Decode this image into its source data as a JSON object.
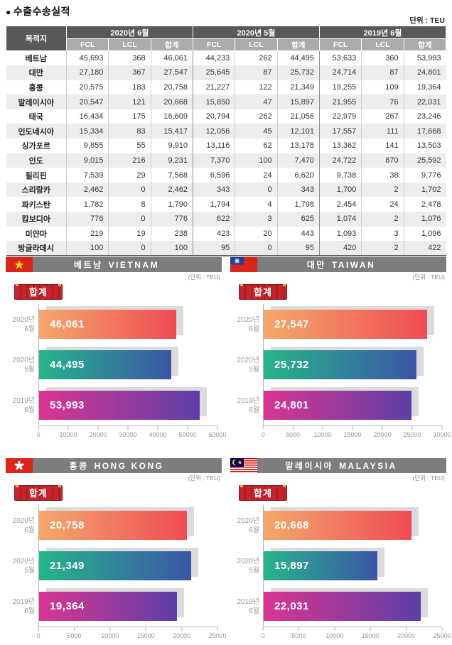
{
  "page": {
    "bullet": "●",
    "title": "수출수송실적",
    "unit": "단위 : TEU"
  },
  "table": {
    "dest_header": "목적지",
    "col_groups": [
      "2020년 6월",
      "2020년 5월",
      "2019년 6월"
    ],
    "sub_headers": [
      "FCL",
      "LCL",
      "합계"
    ],
    "rows": [
      {
        "dest": "베트남",
        "values": [
          "45,693",
          "368",
          "46,061",
          "44,233",
          "262",
          "44,495",
          "53,633",
          "360",
          "53,993"
        ]
      },
      {
        "dest": "대만",
        "values": [
          "27,180",
          "367",
          "27,547",
          "25,645",
          "87",
          "25,732",
          "24,714",
          "87",
          "24,801"
        ]
      },
      {
        "dest": "홍콩",
        "values": [
          "20,575",
          "183",
          "20,758",
          "21,227",
          "122",
          "21,349",
          "19,255",
          "109",
          "19,364"
        ]
      },
      {
        "dest": "말레이시아",
        "values": [
          "20,547",
          "121",
          "20,668",
          "15,850",
          "47",
          "15,897",
          "21,955",
          "76",
          "22,031"
        ]
      },
      {
        "dest": "태국",
        "values": [
          "16,434",
          "175",
          "16,609",
          "20,794",
          "262",
          "21,056",
          "22,979",
          "267",
          "23,246"
        ]
      },
      {
        "dest": "인도네시아",
        "values": [
          "15,334",
          "83",
          "15,417",
          "12,056",
          "45",
          "12,101",
          "17,557",
          "111",
          "17,668"
        ]
      },
      {
        "dest": "싱가포르",
        "values": [
          "9,855",
          "55",
          "9,910",
          "13,116",
          "62",
          "13,178",
          "13,362",
          "141",
          "13,503"
        ]
      },
      {
        "dest": "인도",
        "values": [
          "9,015",
          "216",
          "9,231",
          "7,370",
          "100",
          "7,470",
          "24,722",
          "870",
          "25,592"
        ]
      },
      {
        "dest": "필리핀",
        "values": [
          "7,539",
          "29",
          "7,568",
          "6,596",
          "24",
          "6,620",
          "9,738",
          "38",
          "9,776"
        ]
      },
      {
        "dest": "스리랑카",
        "values": [
          "2,462",
          "0",
          "2,462",
          "343",
          "0",
          "343",
          "1,700",
          "2",
          "1,702"
        ]
      },
      {
        "dest": "파키스탄",
        "values": [
          "1,782",
          "8",
          "1,790",
          "1,794",
          "4",
          "1,798",
          "2,454",
          "24",
          "2,478"
        ]
      },
      {
        "dest": "캄보디아",
        "values": [
          "776",
          "0",
          "776",
          "622",
          "3",
          "625",
          "1,074",
          "2",
          "1,076"
        ]
      },
      {
        "dest": "미얀마",
        "values": [
          "219",
          "19",
          "238",
          "423",
          "20",
          "443",
          "1,093",
          "3",
          "1,096"
        ]
      },
      {
        "dest": "방글라데시",
        "values": [
          "100",
          "0",
          "100",
          "95",
          "0",
          "95",
          "420",
          "2",
          "422"
        ]
      }
    ]
  },
  "chart_shared": {
    "badge": "합계",
    "unit": "(단위 : TEU)",
    "bar_labels": [
      [
        "2020년",
        "6월"
      ],
      [
        "2020년",
        "5월"
      ],
      [
        "2019년",
        "6월"
      ]
    ],
    "bar_gradients": [
      [
        "#F4A96B",
        "#EF4B55"
      ],
      [
        "#27B58A",
        "#3B55A6"
      ],
      [
        "#DA3592",
        "#5C3FA6"
      ]
    ],
    "shadow_color": "#DBDBDB",
    "header_bg": "#7D7D7D",
    "badge_color": "#C4242C"
  },
  "chart_data": [
    {
      "type": "bar",
      "title_ko": "베트남",
      "title_en": "VIETNAM",
      "flag": "vietnam",
      "categories": [
        "2020년 6월",
        "2020년 5월",
        "2019년 6월"
      ],
      "values": [
        46061,
        44495,
        53993
      ],
      "value_labels": [
        "46,061",
        "44,495",
        "53,993"
      ],
      "xlim": [
        0,
        60000
      ],
      "xticks": [
        0,
        10000,
        20000,
        30000,
        40000,
        50000,
        60000
      ],
      "ylabel": "",
      "xlabel": "",
      "legend": "none",
      "grid": false
    },
    {
      "type": "bar",
      "title_ko": "대만",
      "title_en": "TAIWAN",
      "flag": "taiwan",
      "categories": [
        "2020년 6월",
        "2020년 5월",
        "2019년 6월"
      ],
      "values": [
        27547,
        25732,
        24801
      ],
      "value_labels": [
        "27,547",
        "25,732",
        "24,801"
      ],
      "xlim": [
        0,
        30000
      ],
      "xticks": [
        0,
        5000,
        10000,
        15000,
        20000,
        25000,
        30000
      ],
      "ylabel": "",
      "xlabel": "",
      "legend": "none",
      "grid": false
    },
    {
      "type": "bar",
      "title_ko": "홍콩",
      "title_en": "HONG KONG",
      "flag": "hongkong",
      "categories": [
        "2020년 6월",
        "2020년 5월",
        "2019년 6월"
      ],
      "values": [
        20758,
        21349,
        19364
      ],
      "value_labels": [
        "20,758",
        "21,349",
        "19,364"
      ],
      "xlim": [
        0,
        25000
      ],
      "xticks": [
        0,
        5000,
        10000,
        15000,
        20000,
        25000
      ],
      "ylabel": "",
      "xlabel": "",
      "legend": "none",
      "grid": false
    },
    {
      "type": "bar",
      "title_ko": "말레이시아",
      "title_en": "MALAYSIA",
      "flag": "malaysia",
      "categories": [
        "2020년 6월",
        "2020년 5월",
        "2019년 6월"
      ],
      "values": [
        20668,
        15897,
        22031
      ],
      "value_labels": [
        "20,668",
        "15,897",
        "22,031"
      ],
      "xlim": [
        0,
        25000
      ],
      "xticks": [
        0,
        5000,
        10000,
        15000,
        20000,
        25000
      ],
      "ylabel": "",
      "xlabel": "",
      "legend": "none",
      "grid": false
    }
  ]
}
